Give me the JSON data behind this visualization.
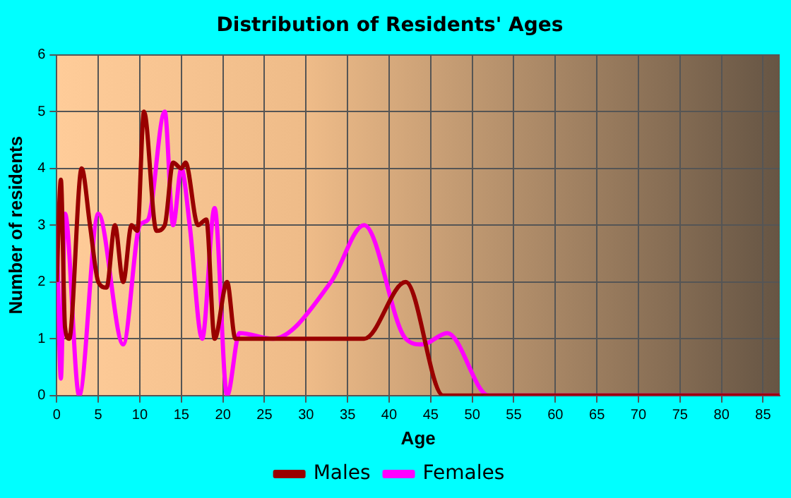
{
  "chart_data": {
    "type": "line",
    "title": "Distribution of Residents' Ages",
    "xlabel": "Age",
    "ylabel": "Number of residents",
    "xlim": [
      0,
      87
    ],
    "xticks": [
      0,
      5,
      10,
      15,
      20,
      25,
      30,
      35,
      40,
      45,
      50,
      55,
      60,
      65,
      70,
      75,
      80,
      85
    ],
    "ylim": [
      0,
      6
    ],
    "yticks": [
      0,
      1,
      2,
      3,
      4,
      5,
      6
    ],
    "grid": true,
    "legend": "bottom",
    "marker": "none",
    "line_style": "solid",
    "series": [
      {
        "name": "Males",
        "color": "#990000",
        "x": [
          0,
          0.5,
          1,
          1.5,
          3,
          4,
          5,
          6,
          7,
          8,
          9,
          9.7,
          10.5,
          12,
          13,
          14,
          15,
          15.5,
          17,
          18,
          19,
          20.5,
          21.5,
          22.5,
          30,
          33,
          37,
          42,
          46.5,
          87
        ],
        "values": [
          2,
          3.8,
          1.2,
          1,
          4,
          3,
          2,
          1.9,
          3,
          2,
          3,
          2.9,
          5,
          2.9,
          3,
          4.1,
          4,
          4.1,
          3,
          3.1,
          1,
          2,
          1,
          1,
          1,
          1,
          1,
          2,
          0,
          0
        ]
      },
      {
        "name": "Females",
        "color": "#ff00ff",
        "x": [
          0,
          0.5,
          1,
          2.7,
          5,
          8,
          10,
          11,
          13,
          14,
          15,
          16,
          17.5,
          19,
          20.5,
          22,
          26,
          33,
          37,
          42,
          44,
          47,
          52,
          87
        ],
        "values": [
          3,
          0.3,
          3.2,
          0,
          3.2,
          0.9,
          3,
          3.1,
          5,
          3,
          4,
          3,
          1,
          3.3,
          0,
          1.1,
          1,
          2,
          3,
          1,
          0.9,
          1.1,
          0,
          0
        ]
      }
    ]
  }
}
